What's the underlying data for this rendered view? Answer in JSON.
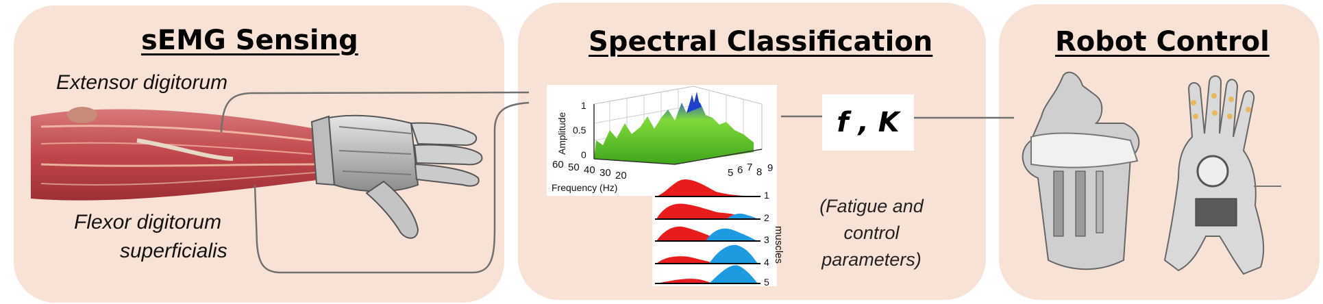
{
  "panels": {
    "sensing": {
      "title": "sEMG Sensing",
      "muscle_top": "Extensor digitorum",
      "muscle_bottom_line1": "Flexor digitorum",
      "muscle_bottom_line2": "superficialis"
    },
    "classification": {
      "title": "Spectral Classification",
      "params": "f , K",
      "caption_line1": "(Fatigue and",
      "caption_line2": "control",
      "caption_line3": "parameters)",
      "plot3d": {
        "z_label": "Amplitude",
        "z_ticks": [
          "1",
          "0.5",
          "0"
        ],
        "x_label": "Frequency (Hz)",
        "x_ticks": [
          "60",
          "50",
          "40",
          "30",
          "20"
        ],
        "y_ticks": [
          "5",
          "6",
          "7",
          "8",
          "9"
        ]
      },
      "muscle_plot": {
        "axis_label": "muscles",
        "rows": [
          "1",
          "2",
          "3",
          "4",
          "5"
        ]
      }
    },
    "control": {
      "title": "Robot Control"
    }
  },
  "colors": {
    "panel_bg": "#f8e2d6",
    "surface_green": "#6fd12a",
    "surface_blue": "#1f3fcf",
    "spectrum_red": "#e81c1c",
    "spectrum_blue": "#1e9be0",
    "connector": "#707070"
  }
}
